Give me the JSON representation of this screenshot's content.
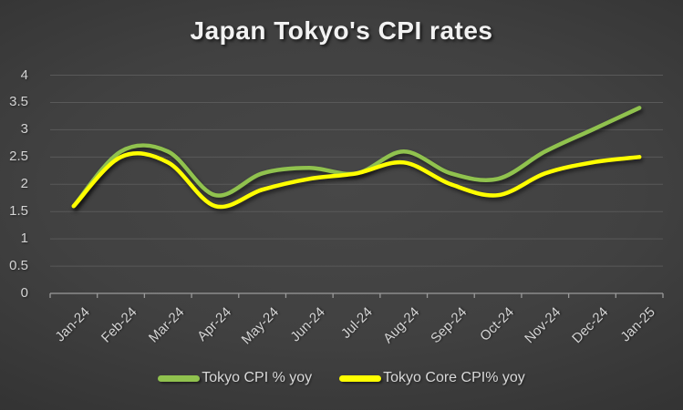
{
  "title": "Japan Tokyo's CPI rates",
  "chart_data": {
    "type": "line",
    "title": "Japan Tokyo's CPI rates",
    "categories": [
      "Jan-24",
      "Feb-24",
      "Mar-24",
      "Apr-24",
      "May-24",
      "Jun-24",
      "Jul-24",
      "Aug-24",
      "Sep-24",
      "Oct-24",
      "Nov-24",
      "Dec-24",
      "Jan-25"
    ],
    "series": [
      {
        "name": "Tokyo CPI % yoy",
        "color": "#90C24E",
        "values": [
          1.6,
          2.6,
          2.6,
          1.8,
          2.2,
          2.3,
          2.2,
          2.6,
          2.2,
          2.1,
          2.6,
          3.0,
          3.4
        ]
      },
      {
        "name": "Tokyo Core CPI% yoy",
        "color": "#FFFF00",
        "values": [
          1.6,
          2.5,
          2.4,
          1.6,
          1.9,
          2.1,
          2.2,
          2.4,
          2.0,
          1.8,
          2.2,
          2.4,
          2.5
        ]
      }
    ],
    "ylabel": "",
    "xlabel": "",
    "ylim": [
      0,
      4
    ],
    "ytick_step": 0.5,
    "ytick_labels": [
      "4",
      "3.5",
      "3",
      "2.5",
      "2",
      "1.5",
      "1",
      "0.5",
      "0"
    ],
    "grid": true,
    "smoothed_lines": true,
    "legend_position": "bottom",
    "x_label_rotation_deg": 45
  },
  "colors": {
    "background_center": "#474747",
    "background_edge": "#262626",
    "gridline": "#595959",
    "axis_line": "#9a9a9a",
    "axis_text": "#d4d4d4",
    "title_text": "#f2f2f2",
    "legend_text": "#d9d9d9",
    "series_green": "#90C24E",
    "series_yellow": "#FFFF00"
  }
}
